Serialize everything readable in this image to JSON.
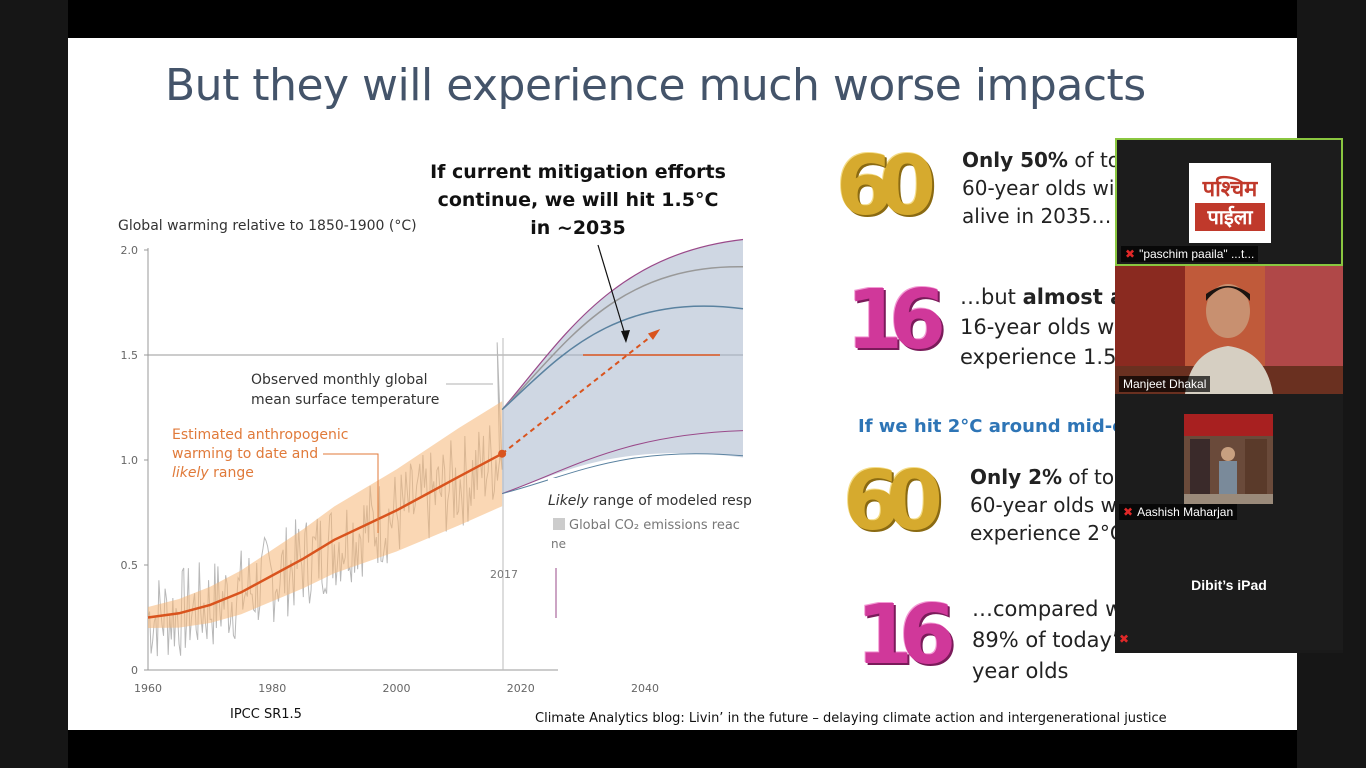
{
  "slide": {
    "title": "But they will experience much worse impacts",
    "callout": "If current mitigation efforts continue, we will hit 1.5°C in ~2035",
    "source_left": "IPCC SR1.5",
    "source_right": "Climate Analytics blog: Livin’ in the future – delaying climate action and intergenerational justice"
  },
  "chart_data": {
    "type": "line",
    "title": "Global warming relative to 1850-1900 (°C)",
    "xlabel": "",
    "ylabel": "Global warming relative to 1850-1900 (°C)",
    "xlim": [
      1960,
      2040
    ],
    "ylim": [
      0,
      2.0
    ],
    "x_ticks": [
      "1960",
      "1980",
      "2000",
      "2020",
      "2040"
    ],
    "y_ticks": [
      "0",
      "0.5",
      "1.0",
      "1.5",
      "2.0"
    ],
    "marker_year": "2017",
    "annotations": {
      "observed": [
        "Observed monthly global",
        "mean surface temperature"
      ],
      "estimated_line1": "Estimated anthropogenic",
      "estimated_line2": "warming to date and",
      "estimated_likely": "likely",
      "estimated_range": " range",
      "modeled_likely": "Likely",
      "modeled_rest": " range of modeled resp",
      "emissions": "Global CO₂ emissions reac",
      "emissions_sub": "ne"
    },
    "series": [
      {
        "name": "Estimated anthropogenic warming",
        "x": [
          1960,
          1965,
          1970,
          1975,
          1980,
          1985,
          1990,
          1995,
          2000,
          2005,
          2010,
          2017
        ],
        "values": [
          0.25,
          0.27,
          0.31,
          0.37,
          0.45,
          0.53,
          0.62,
          0.69,
          0.76,
          0.84,
          0.92,
          1.03
        ]
      },
      {
        "name": "Projection trend",
        "x": [
          2017,
          2035
        ],
        "values": [
          1.03,
          1.6
        ]
      }
    ],
    "reference_line": 1.5,
    "modeled_range_2040": [
      1.05,
      2.05
    ]
  },
  "balloons": [
    {
      "text": "60",
      "style": "gold"
    },
    {
      "text": "16",
      "style": "pink"
    },
    {
      "text": "60",
      "style": "gold"
    },
    {
      "text": "16",
      "style": "pink"
    }
  ],
  "stats": {
    "s1": {
      "bold": "Only 50%",
      "rest": " of tod",
      "line2": "60-year olds will",
      "line3": "alive in 2035…"
    },
    "s2": {
      "pre": "…but ",
      "bold": "almost al",
      "line2": "16-year olds w",
      "line3": "experience 1.5"
    },
    "heading": "If we hit 2°C around mid-ce",
    "s3": {
      "bold": "Only 2%",
      "rest": " of toda",
      "line2": "60-year olds wo",
      "line3": "experience 2°C."
    },
    "s4": {
      "line1": "…compared w",
      "line2": "89% of today’",
      "line3": "year olds"
    }
  },
  "participants": [
    {
      "name": "\"paschim paaila\" ...t...",
      "logo1": "पश्चिम",
      "logo2": "पाईला"
    },
    {
      "name": "Manjeet Dhakal"
    },
    {
      "name": "Aashish Maharjan"
    },
    {
      "name": "Dibit’s iPad"
    }
  ],
  "colors": {
    "title": "#44546a",
    "anthro": "#d9541e",
    "band": "#f5b777",
    "modeled": "#a8b6cc",
    "heading_blue": "#2e75b6",
    "active_speaker": "#8ac640"
  }
}
